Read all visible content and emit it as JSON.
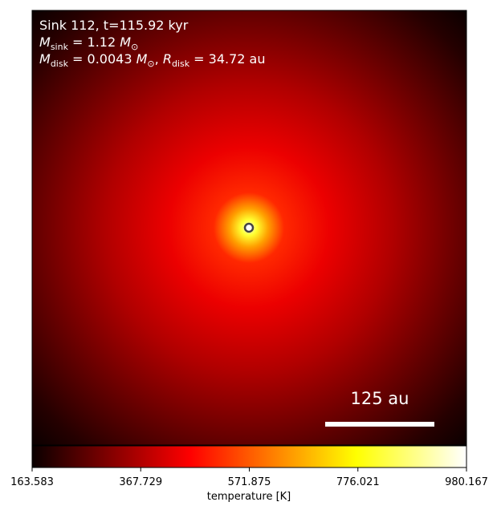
{
  "chart_data": {
    "type": "image",
    "annotations": [
      [
        {
          "text": "Sink 112, t=115.92 kyr",
          "style": "normal"
        }
      ],
      [
        {
          "text": "M",
          "style": "italic"
        },
        {
          "text": "sink",
          "style": "sub"
        },
        {
          "text": " = 1.12 ",
          "style": "normal"
        },
        {
          "text": "M",
          "style": "italic"
        },
        {
          "text": "⊙",
          "style": "sub"
        }
      ],
      [
        {
          "text": "M",
          "style": "italic"
        },
        {
          "text": "disk",
          "style": "sub"
        },
        {
          "text": " = 0.0043 ",
          "style": "normal"
        },
        {
          "text": "M",
          "style": "italic"
        },
        {
          "text": "⊙",
          "style": "sub"
        },
        {
          "text": ", ",
          "style": "normal"
        },
        {
          "text": "R",
          "style": "italic"
        },
        {
          "text": "disk",
          "style": "sub"
        },
        {
          "text": " = 34.72 au",
          "style": "normal"
        }
      ]
    ],
    "scale_bar_label": "125 au",
    "colorbar": {
      "label": "temperature [K]",
      "colormap": "hot",
      "clim": [
        163.583,
        980.167
      ],
      "ticks": [
        163.583,
        367.729,
        571.875,
        776.021,
        980.167
      ]
    }
  }
}
